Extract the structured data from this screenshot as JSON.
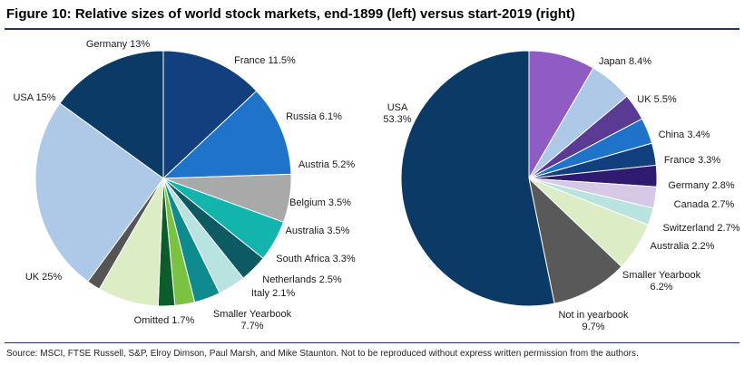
{
  "title": "Figure 10: Relative sizes of world stock markets, end-1899 (left) versus start-2019 (right)",
  "source": "Source: MSCI, FTSE Russell, S&P, Elroy Dimson, Paul Marsh, and Mike Staunton. Not to be reproduced without express written permission from the authors.",
  "chart_data": [
    {
      "type": "pie",
      "slices": [
        {
          "label": "Germany 13%",
          "value": 13.0,
          "color": "#123f7d"
        },
        {
          "label": "France 11.5%",
          "value": 11.5,
          "color": "#1f73c9"
        },
        {
          "label": "Russia 6.1%",
          "value": 6.1,
          "color": "#a9a9a9"
        },
        {
          "label": "Austria 5.2%",
          "value": 5.2,
          "color": "#12b4ac"
        },
        {
          "label": "Belgium 3.5%",
          "value": 3.5,
          "color": "#0d5a63"
        },
        {
          "label": "Australia 3.5%",
          "value": 3.5,
          "color": "#b9e3e1"
        },
        {
          "label": "South Africa 3.3%",
          "value": 3.3,
          "color": "#0f8a8f"
        },
        {
          "label": "Netherlands 2.5%",
          "value": 2.5,
          "color": "#7cc242"
        },
        {
          "label": "Italy 2.1%",
          "value": 2.1,
          "color": "#0d5c2b"
        },
        {
          "label": [
            "Smaller Yearbook",
            "7.7%"
          ],
          "value": 7.7,
          "color": "#dcecc5"
        },
        {
          "label": "Omitted 1.7%",
          "value": 1.7,
          "color": "#555555"
        },
        {
          "label": "UK 25%",
          "value": 25.0,
          "color": "#aec8e8"
        },
        {
          "label": "USA 15%",
          "value": 15.0,
          "color": "#0b3a66"
        }
      ]
    },
    {
      "type": "pie",
      "slices": [
        {
          "label": "Japan 8.4%",
          "value": 8.4,
          "color": "#8e5cc2"
        },
        {
          "label": "UK 5.5%",
          "value": 5.5,
          "color": "#aec8e8"
        },
        {
          "label": "China 3.4%",
          "value": 3.4,
          "color": "#5b3a94"
        },
        {
          "label": "France 3.3%",
          "value": 3.3,
          "color": "#1f73c9"
        },
        {
          "label": "Germany 2.8%",
          "value": 2.8,
          "color": "#123f7d"
        },
        {
          "label": "Canada 2.7%",
          "value": 2.7,
          "color": "#2e1a6e"
        },
        {
          "label": "Switzerland 2.7%",
          "value": 2.7,
          "color": "#d7c8e6"
        },
        {
          "label": "Australia 2.2%",
          "value": 2.2,
          "color": "#b9e3e1"
        },
        {
          "label": [
            "Smaller Yearbook",
            "6.2%"
          ],
          "value": 6.2,
          "color": "#dcecc5"
        },
        {
          "label": [
            "Not in yearbook",
            "9.7%"
          ],
          "value": 9.7,
          "color": "#595959"
        },
        {
          "label": [
            "USA",
            "53.3%"
          ],
          "value": 53.3,
          "color": "#0b3a66"
        }
      ]
    }
  ]
}
